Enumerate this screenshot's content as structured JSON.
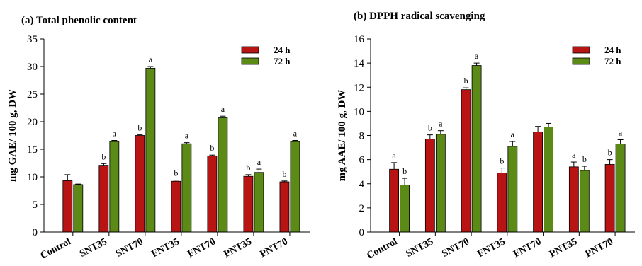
{
  "chart_data": [
    {
      "type": "bar",
      "title": "(a) Total phenolic content",
      "ylabel": "mg GAE/ 100 g, DW",
      "xlabel": "",
      "ylim": [
        0,
        35
      ],
      "yticks": [
        0,
        5,
        10,
        15,
        20,
        25,
        30,
        35
      ],
      "categories": [
        "Control",
        "SNT35",
        "SNT70",
        "FNT35",
        "FNT70",
        "PNT35",
        "PNT70"
      ],
      "legend_position": "top-right",
      "grid": false,
      "series": [
        {
          "name": "24 h",
          "color": "#b81414",
          "values": [
            9.3,
            12.1,
            17.5,
            9.2,
            13.8,
            10.1,
            9.1
          ],
          "errors": [
            1.1,
            0.3,
            0.15,
            0.2,
            0.15,
            0.3,
            0.15
          ],
          "letters": [
            "",
            "b",
            "b",
            "b",
            "b",
            "b",
            "b"
          ]
        },
        {
          "name": "72 h",
          "color": "#5b8a17",
          "values": [
            8.6,
            16.4,
            29.7,
            16.0,
            20.7,
            10.8,
            16.4
          ],
          "errors": [
            0.1,
            0.2,
            0.3,
            0.2,
            0.3,
            0.6,
            0.2
          ],
          "letters": [
            "",
            "a",
            "a",
            "a",
            "a",
            "a",
            "a"
          ]
        }
      ]
    },
    {
      "type": "bar",
      "title": "(b) DPPH radical scavenging",
      "ylabel": "mg AAE/ 100 g, DW",
      "xlabel": "",
      "ylim": [
        0,
        16
      ],
      "yticks": [
        0,
        2,
        4,
        6,
        8,
        10,
        12,
        14,
        16
      ],
      "categories": [
        "Control",
        "SNT35",
        "SNT70",
        "FNT35",
        "FNT70",
        "PNT35",
        "PNT70"
      ],
      "legend_position": "top-right",
      "grid": false,
      "series": [
        {
          "name": "24 h",
          "color": "#b81414",
          "values": [
            5.2,
            7.7,
            11.8,
            4.9,
            8.3,
            5.4,
            5.6
          ],
          "errors": [
            0.55,
            0.35,
            0.15,
            0.4,
            0.45,
            0.4,
            0.4
          ],
          "letters": [
            "a",
            "b",
            "b",
            "b",
            "",
            "a",
            "b"
          ]
        },
        {
          "name": "72 h",
          "color": "#5b8a17",
          "values": [
            3.9,
            8.1,
            13.8,
            7.1,
            8.7,
            5.1,
            7.3
          ],
          "errors": [
            0.55,
            0.3,
            0.2,
            0.4,
            0.3,
            0.35,
            0.35
          ],
          "letters": [
            "b",
            "a",
            "a",
            "a",
            "",
            "b",
            "a"
          ]
        }
      ]
    }
  ]
}
